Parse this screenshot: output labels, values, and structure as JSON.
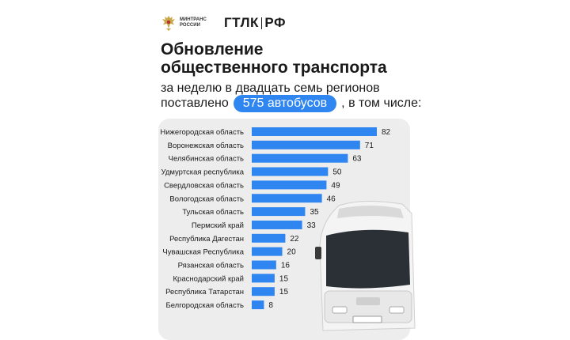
{
  "header": {
    "mintrans_line1": "МИНТРАНС",
    "mintrans_line2": "РОССИИ",
    "gtlk_left": "ГТЛК",
    "gtlk_right": "РФ"
  },
  "title_line1": "Обновление",
  "title_line2": "общественного транспорта",
  "subtitle_line1": "за неделю в двадцать семь регионов",
  "subtitle_line2_before": "поставлено",
  "subtitle_highlight": "575 автобусов",
  "subtitle_line2_after": ", в том числе:",
  "colors": {
    "accent": "#2f86f0",
    "panel": "#ededed"
  },
  "chart_data": {
    "type": "bar",
    "orientation": "horizontal",
    "categories": [
      "Нижегородская область",
      "Воронежская область",
      "Челябинская область",
      "Удмуртская республика",
      "Свердловская область",
      "Вологодская область",
      "Тульская область",
      "Пермский край",
      "Республика Дагестан",
      "Чувашская Республика",
      "Рязанская область",
      "Краснодарский край",
      "Республика Татарстан",
      "Белгородская область"
    ],
    "values": [
      82,
      71,
      63,
      50,
      49,
      46,
      35,
      33,
      22,
      20,
      16,
      15,
      15,
      8
    ],
    "data_labels": true
  }
}
